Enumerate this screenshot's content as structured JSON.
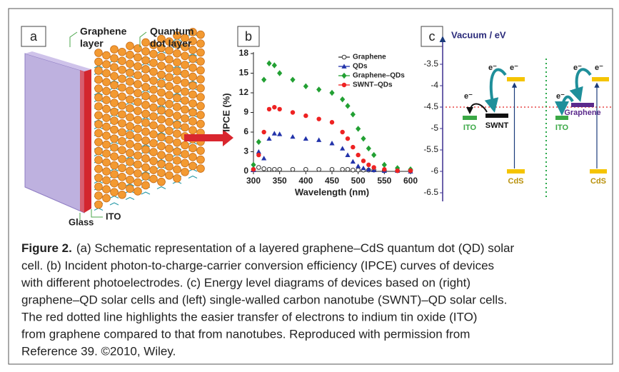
{
  "panels": {
    "a": {
      "label": "a",
      "graphene_label": [
        "Graphene",
        "layer"
      ],
      "qd_label": [
        "Quantum",
        "dot layer"
      ],
      "glass_label": "Glass",
      "ito_label": "ITO"
    },
    "c": {
      "label": "c",
      "axis_label": "Vacuum / eV",
      "ylim": [
        -6.7,
        -3.2
      ],
      "yticks": [
        -3.5,
        -4.0,
        -4.5,
        -5.0,
        -5.5,
        -6.0,
        -6.5
      ],
      "reference_line": -4.5,
      "electron_label": "e⁻",
      "left": {
        "levels": [
          {
            "label": "ITO",
            "value": -4.75,
            "color": "#3aa845"
          },
          {
            "label": "SWNT",
            "value": -4.7,
            "color": "#111111"
          },
          {
            "label": null,
            "value": -3.85,
            "color": "#f5c400"
          },
          {
            "label": "CdS",
            "value": -6.0,
            "color": "#f5c400"
          }
        ]
      },
      "right": {
        "levels": [
          {
            "label": "ITO",
            "value": -4.75,
            "color": "#3aa845"
          },
          {
            "label": "Graphene",
            "value": -4.45,
            "color": "#5b2a8c"
          },
          {
            "label": null,
            "value": -3.85,
            "color": "#f5c400"
          },
          {
            "label": "CdS",
            "value": -6.0,
            "color": "#f5c400"
          }
        ]
      }
    }
  },
  "chart_data": {
    "type": "scatter",
    "panel_label": "b",
    "xlabel": "Wavelength (nm)",
    "ylabel": "IPCE (%)",
    "x": [
      300,
      310,
      320,
      330,
      340,
      350,
      375,
      400,
      425,
      450,
      470,
      480,
      490,
      500,
      510,
      520,
      530,
      550,
      575,
      600
    ],
    "xlim": [
      300,
      600
    ],
    "xticks": [
      300,
      350,
      400,
      450,
      500,
      550,
      600
    ],
    "ylim": [
      0,
      18
    ],
    "yticks": [
      0,
      3,
      6,
      9,
      12,
      15,
      18
    ],
    "legend": "upper right",
    "series": [
      {
        "name": "Graphene",
        "color": "#333333",
        "marker": "open-circle",
        "values": [
          0.3,
          0.6,
          0.4,
          0.3,
          0.3,
          0.3,
          0.3,
          0.3,
          0.3,
          0.3,
          0.3,
          0.3,
          0.2,
          0.2,
          0.2,
          0.2,
          0.2,
          0.1,
          0.1,
          0.1
        ]
      },
      {
        "name": "QDs",
        "color": "#2233aa",
        "marker": "triangle",
        "values": [
          0.2,
          3,
          2,
          5,
          5.8,
          5.7,
          5.3,
          5,
          4.8,
          4.3,
          3.5,
          2.5,
          1.5,
          0.8,
          0.5,
          0.3,
          0.2,
          0.1,
          0.1,
          0
        ]
      },
      {
        "name": "Graphene–QDs",
        "color": "#22a033",
        "marker": "diamond",
        "values": [
          1,
          4.5,
          14,
          16.5,
          16.2,
          15,
          14,
          13,
          12.5,
          12,
          11,
          10,
          8.7,
          6.5,
          5,
          3.5,
          2.5,
          1,
          0.5,
          0.3
        ]
      },
      {
        "name": "SWNT–QDs",
        "color": "#ee2222",
        "marker": "circle",
        "values": [
          0.3,
          2.5,
          6,
          9.5,
          9.8,
          9.5,
          9,
          8.5,
          8,
          7.5,
          6,
          5,
          3.7,
          2.5,
          1.6,
          1,
          0.6,
          0.3,
          0.1,
          0.1
        ]
      }
    ]
  },
  "caption": {
    "label": "Figure 2.",
    "lines": [
      "(a) Schematic representation of a layered graphene–CdS quantum dot (QD) solar",
      "cell. (b) Incident photon-to-charge-carrier conversion efficiency (IPCE) curves of devices",
      "with different photoelectrodes. (c) Energy level diagrams of devices based on (right)",
      "graphene–QD solar cells and (left) single-walled carbon nanotube (SWNT)–QD solar cells.",
      "The red dotted line highlights the easier transfer of electrons to indium tin oxide (ITO)",
      "from graphene compared to that from nanotubes. Reproduced with permission from",
      "Reference 39. ©2010, Wiley."
    ]
  }
}
